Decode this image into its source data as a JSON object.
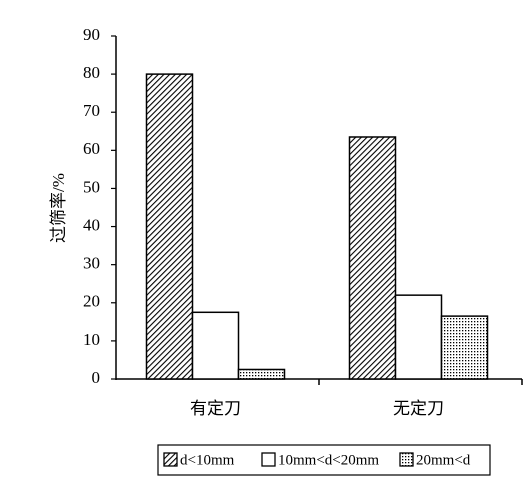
{
  "chart_data": {
    "type": "bar",
    "y_label": "过筛率/%",
    "categories": [
      "有定刀",
      "无定刀"
    ],
    "series": [
      {
        "name": "d<10mm",
        "color": "#000000",
        "pattern": "hatch",
        "values": [
          80,
          63.5
        ]
      },
      {
        "name": "10mm<d<20mm",
        "color": "#000000",
        "pattern": "none",
        "values": [
          17.5,
          22
        ]
      },
      {
        "name": "20mm<d",
        "color": "#000000",
        "pattern": "dots",
        "values": [
          2.5,
          16.5
        ]
      }
    ],
    "ylim": [
      0,
      90
    ],
    "yticks": [
      0,
      10,
      20,
      30,
      40,
      50,
      60,
      70,
      80,
      90
    ],
    "grid": false
  }
}
